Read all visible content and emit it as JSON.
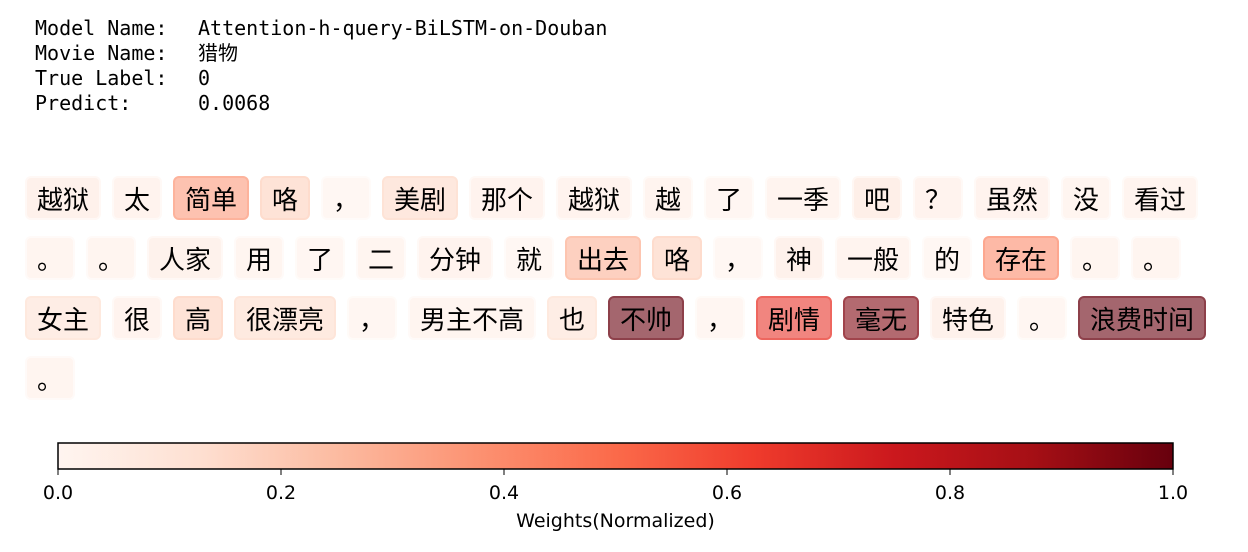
{
  "meta": [
    {
      "label": "Model Name:",
      "value": "Attention-h-query-BiLSTM-on-Douban"
    },
    {
      "label": "Movie Name:",
      "value": "猎物"
    },
    {
      "label": "True Label:",
      "value": "0"
    },
    {
      "label": "Predict:",
      "value": "0.0068"
    }
  ],
  "chart_data": {
    "type": "heatmap",
    "title": "",
    "tokens": [
      {
        "text": "越狱",
        "weight": 0.08
      },
      {
        "text": "太",
        "weight": 0.06
      },
      {
        "text": "简单",
        "weight": 0.35
      },
      {
        "text": "咯",
        "weight": 0.18
      },
      {
        "text": "，",
        "weight": 0.02
      },
      {
        "text": "美剧",
        "weight": 0.15
      },
      {
        "text": "那个",
        "weight": 0.06
      },
      {
        "text": "越狱",
        "weight": 0.06
      },
      {
        "text": "越",
        "weight": 0.05
      },
      {
        "text": "了",
        "weight": 0.03
      },
      {
        "text": "一季",
        "weight": 0.05
      },
      {
        "text": "吧",
        "weight": 0.1
      },
      {
        "text": "？",
        "weight": 0.06
      },
      {
        "text": "虽然",
        "weight": 0.06
      },
      {
        "text": "没",
        "weight": 0.04
      },
      {
        "text": "看过",
        "weight": 0.05
      },
      {
        "text": "。",
        "weight": 0.04
      },
      {
        "text": "。",
        "weight": 0.04
      },
      {
        "text": "人家",
        "weight": 0.07
      },
      {
        "text": "用",
        "weight": 0.04
      },
      {
        "text": "了",
        "weight": 0.03
      },
      {
        "text": "二",
        "weight": 0.04
      },
      {
        "text": "分钟",
        "weight": 0.06
      },
      {
        "text": "就",
        "weight": 0.02
      },
      {
        "text": "出去",
        "weight": 0.28
      },
      {
        "text": "咯",
        "weight": 0.18
      },
      {
        "text": "，",
        "weight": 0.02
      },
      {
        "text": "神",
        "weight": 0.08
      },
      {
        "text": "一般",
        "weight": 0.05
      },
      {
        "text": "的",
        "weight": 0.02
      },
      {
        "text": "存在",
        "weight": 0.4
      },
      {
        "text": "。",
        "weight": 0.04
      },
      {
        "text": "。",
        "weight": 0.04
      },
      {
        "text": "女主",
        "weight": 0.12
      },
      {
        "text": "很",
        "weight": 0.06
      },
      {
        "text": "高",
        "weight": 0.18
      },
      {
        "text": "很漂亮",
        "weight": 0.14
      },
      {
        "text": "，",
        "weight": 0.03
      },
      {
        "text": "男主不高",
        "weight": 0.04
      },
      {
        "text": "也",
        "weight": 0.12
      },
      {
        "text": "不帅",
        "weight": 1.0
      },
      {
        "text": "，",
        "weight": 0.03
      },
      {
        "text": "剧情",
        "weight": 0.65
      },
      {
        "text": "毫无",
        "weight": 0.95
      },
      {
        "text": "特色",
        "weight": 0.08
      },
      {
        "text": "。",
        "weight": 0.03
      },
      {
        "text": "浪费时间",
        "weight": 1.0
      },
      {
        "text": "。",
        "weight": 0.04
      }
    ],
    "colorbar": {
      "label": "Weights(Normalized)",
      "range": [
        0,
        1
      ],
      "ticks": [
        "0.0",
        "0.2",
        "0.4",
        "0.6",
        "0.8",
        "1.0"
      ],
      "colormap": "Reds",
      "stops": [
        "#fff5f0",
        "#fee0d2",
        "#fcbba1",
        "#fc9272",
        "#fb6a4a",
        "#ef3b2c",
        "#cb181d",
        "#a50f15",
        "#67000d"
      ]
    }
  }
}
